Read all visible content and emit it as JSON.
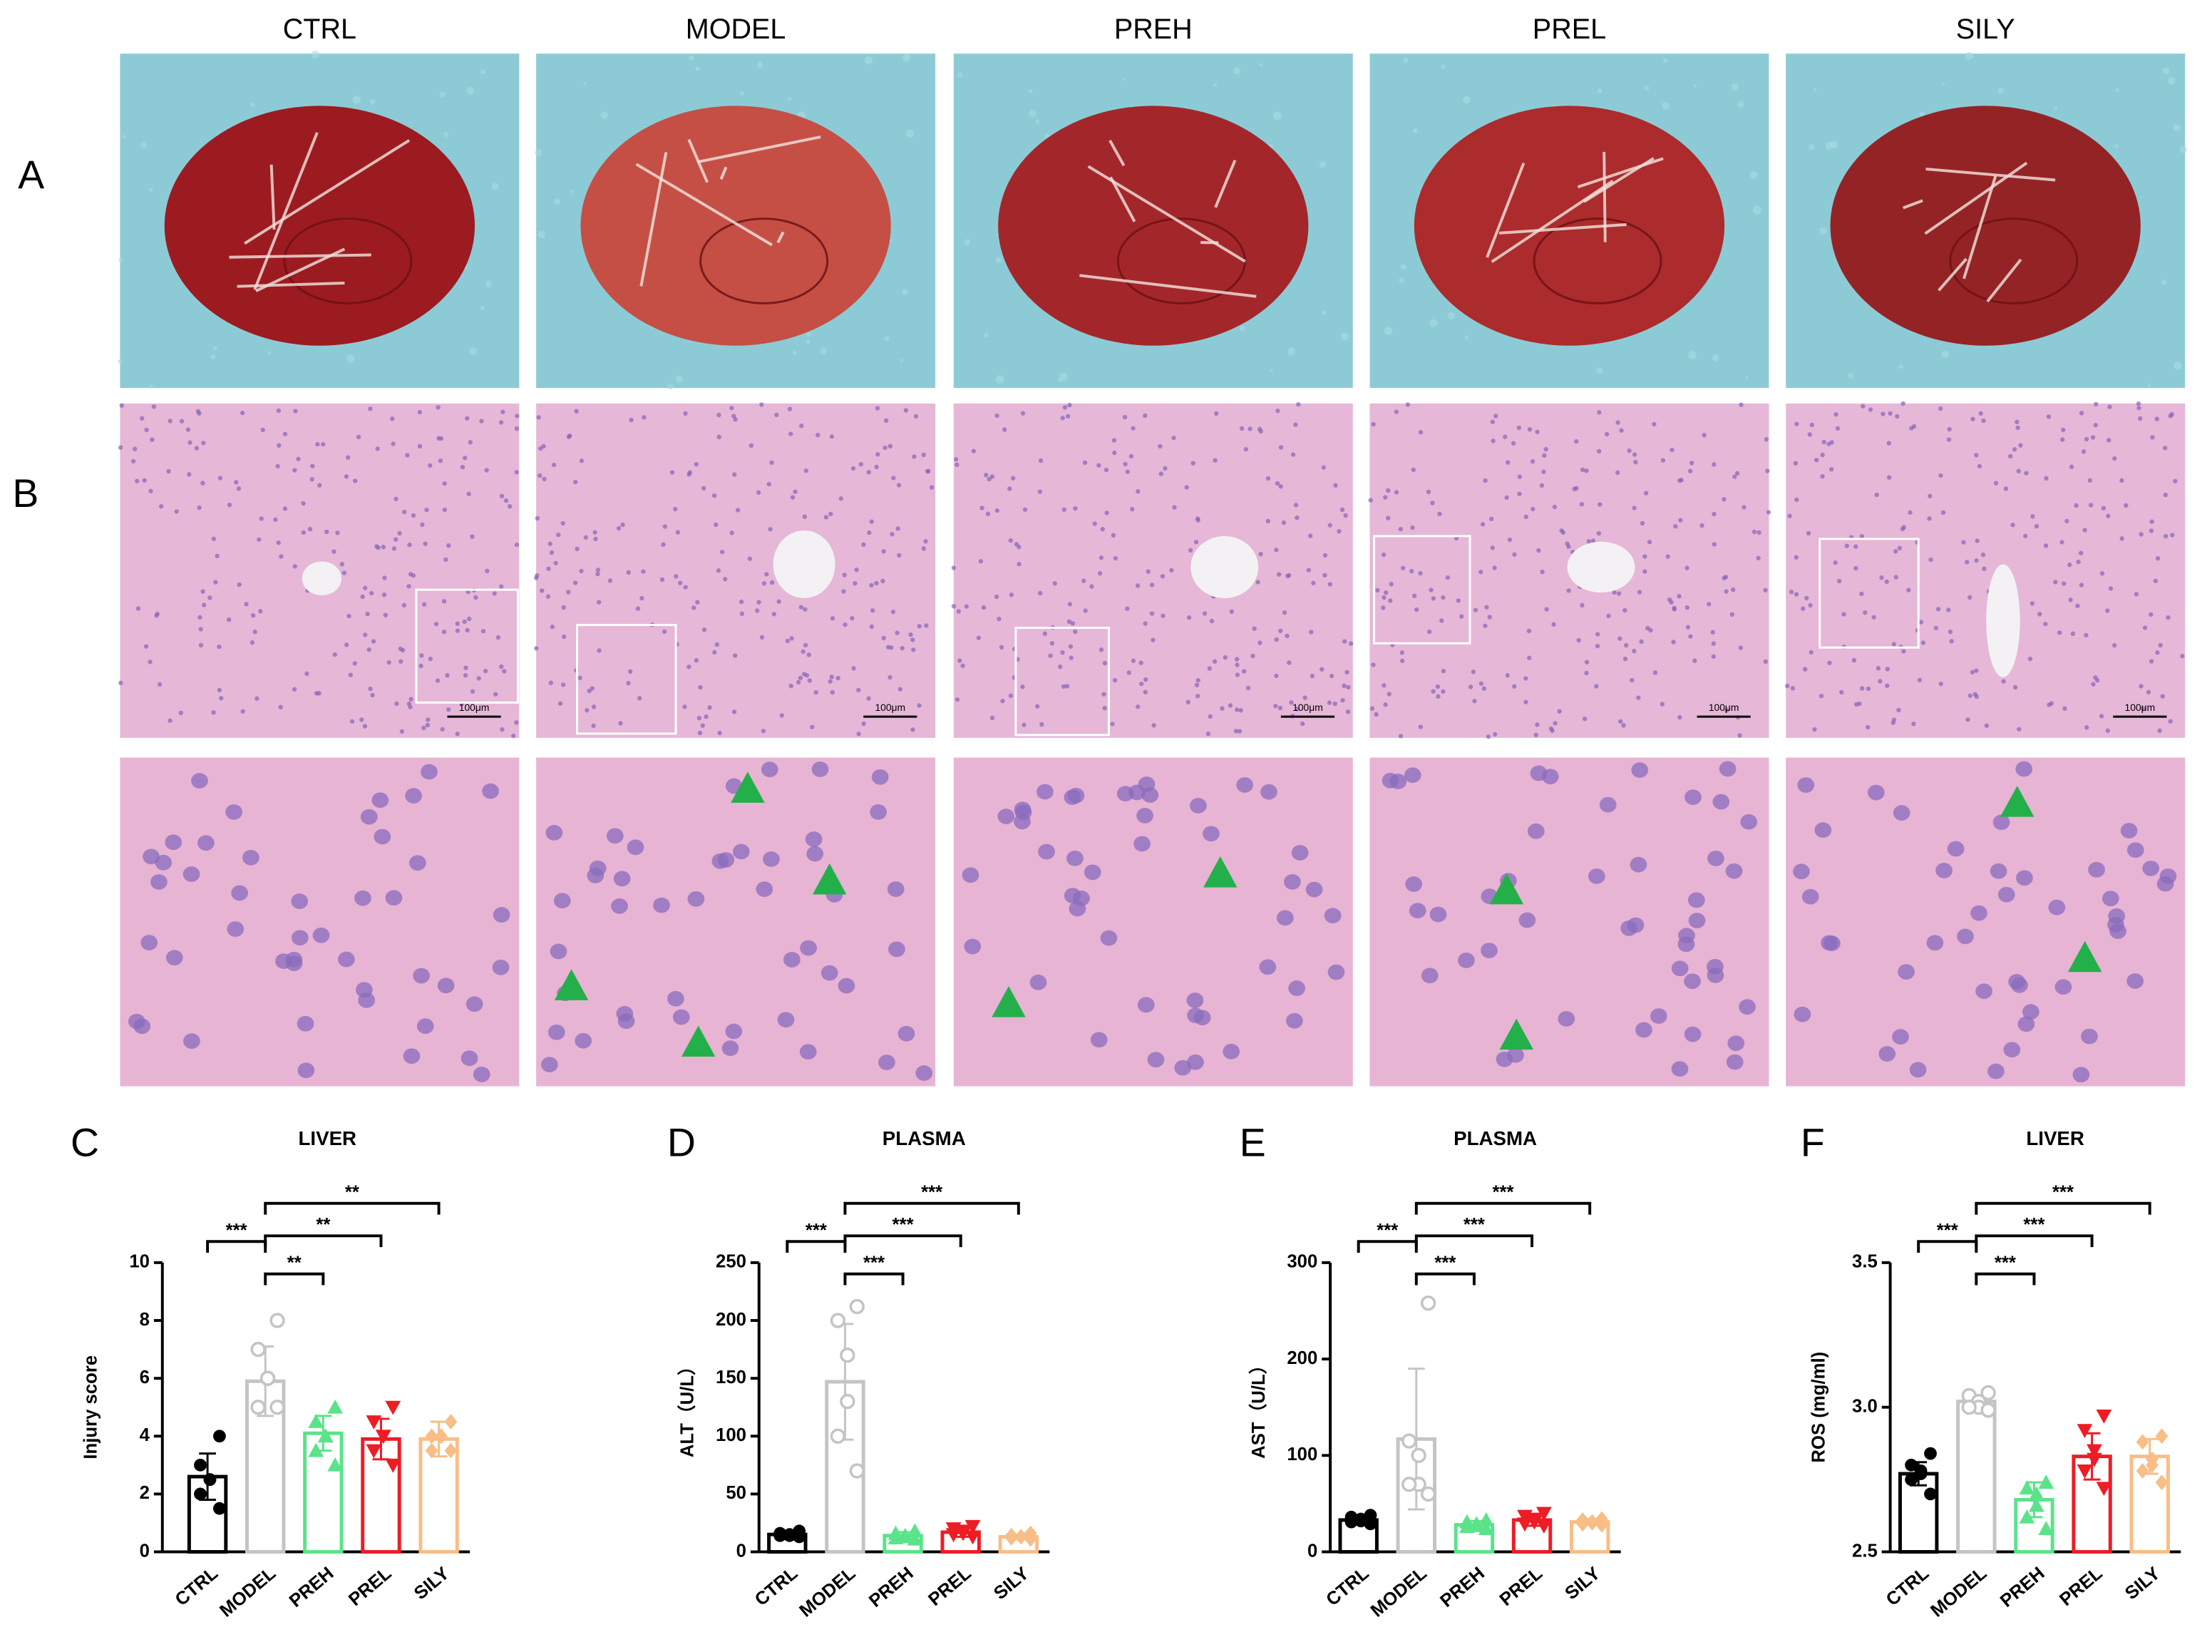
{
  "figure": {
    "groups": [
      "CTRL",
      "MODEL",
      "PREH",
      "PREL",
      "SILY"
    ],
    "row_labels": [
      "A",
      "B"
    ],
    "scale_bar_label": "100μm"
  },
  "chart_data": [
    {
      "type": "bar",
      "panel": "C",
      "title": "LIVER",
      "y_label": "Injury score",
      "categories": [
        "CTRL",
        "MODEL",
        "PREH",
        "PREL",
        "SILY"
      ],
      "colors": [
        "#000000",
        "#c4c4c4",
        "#5be38a",
        "#ee1c25",
        "#f8be86"
      ],
      "markers": [
        "circle",
        "open-circle",
        "triangle",
        "triangle-down",
        "diamond"
      ],
      "values": [
        2.6,
        5.9,
        4.1,
        3.9,
        3.9
      ],
      "errors": [
        0.8,
        1.2,
        0.6,
        0.7,
        0.6
      ],
      "points": [
        [
          4,
          3,
          2.5,
          2.5,
          2,
          1.5
        ],
        [
          8,
          7,
          6,
          6,
          5,
          5
        ],
        [
          5,
          4.5,
          4,
          4,
          3.5,
          3
        ],
        [
          5,
          4.5,
          4,
          4,
          3.5,
          3
        ],
        [
          4.5,
          4,
          4,
          4,
          3.5,
          3.5
        ]
      ],
      "ylim": [
        0,
        10
      ],
      "yticks": [
        0,
        2,
        4,
        6,
        8,
        10
      ],
      "significance": [
        {
          "categories": [
            "CTRL",
            "MODEL"
          ],
          "label": "***"
        },
        {
          "categories": [
            "MODEL",
            "PREH"
          ],
          "label": "**"
        },
        {
          "categories": [
            "MODEL",
            "PREL"
          ],
          "label": "**"
        },
        {
          "categories": [
            "MODEL",
            "SILY"
          ],
          "label": "**"
        }
      ]
    },
    {
      "type": "bar",
      "panel": "D",
      "title": "PLASMA",
      "y_label": "ALT（U/L）",
      "categories": [
        "CTRL",
        "MODEL",
        "PREH",
        "PREL",
        "SILY"
      ],
      "colors": [
        "#000000",
        "#c4c4c4",
        "#5be38a",
        "#ee1c25",
        "#f8be86"
      ],
      "markers": [
        "circle",
        "open-circle",
        "triangle",
        "triangle-down",
        "diamond"
      ],
      "values": [
        15,
        147,
        14,
        17,
        13
      ],
      "errors": [
        2,
        50,
        3,
        4,
        2
      ],
      "points": [
        [
          18,
          16,
          15,
          14,
          14,
          13
        ],
        [
          212,
          200,
          170,
          130,
          100,
          70
        ],
        [
          18,
          16,
          14,
          13,
          12,
          11
        ],
        [
          22,
          20,
          18,
          16,
          15,
          13
        ],
        [
          16,
          14,
          13,
          13,
          12,
          11
        ]
      ],
      "ylim": [
        0,
        250
      ],
      "yticks": [
        0,
        50,
        100,
        150,
        200,
        250
      ],
      "significance": [
        {
          "categories": [
            "CTRL",
            "MODEL"
          ],
          "label": "***"
        },
        {
          "categories": [
            "MODEL",
            "PREH"
          ],
          "label": "***"
        },
        {
          "categories": [
            "MODEL",
            "PREL"
          ],
          "label": "***"
        },
        {
          "categories": [
            "MODEL",
            "SILY"
          ],
          "label": "***"
        }
      ]
    },
    {
      "type": "bar",
      "panel": "E",
      "title": "PLASMA",
      "y_label": "AST（U/L）",
      "categories": [
        "CTRL",
        "MODEL",
        "PREH",
        "PREL",
        "SILY"
      ],
      "colors": [
        "#000000",
        "#c4c4c4",
        "#5be38a",
        "#ee1c25",
        "#f8be86"
      ],
      "markers": [
        "circle",
        "open-circle",
        "triangle",
        "triangle-down",
        "diamond"
      ],
      "values": [
        33,
        117,
        28,
        33,
        31
      ],
      "errors": [
        4,
        73,
        4,
        6,
        3
      ],
      "points": [
        [
          38,
          36,
          34,
          32,
          31,
          29
        ],
        [
          258,
          115,
          100,
          70,
          70,
          60
        ],
        [
          33,
          31,
          29,
          27,
          26,
          24
        ],
        [
          40,
          37,
          34,
          31,
          29,
          27
        ],
        [
          34,
          33,
          31,
          30,
          29,
          28
        ]
      ],
      "ylim": [
        0,
        300
      ],
      "yticks": [
        0,
        100,
        200,
        300
      ],
      "significance": [
        {
          "categories": [
            "CTRL",
            "MODEL"
          ],
          "label": "***"
        },
        {
          "categories": [
            "MODEL",
            "PREH"
          ],
          "label": "***"
        },
        {
          "categories": [
            "MODEL",
            "PREL"
          ],
          "label": "***"
        },
        {
          "categories": [
            "MODEL",
            "SILY"
          ],
          "label": "***"
        }
      ]
    },
    {
      "type": "bar",
      "panel": "F",
      "title": "LIVER",
      "y_label": "ROS (mg/ml)",
      "categories": [
        "CTRL",
        "MODEL",
        "PREH",
        "PREL",
        "SILY"
      ],
      "colors": [
        "#000000",
        "#c4c4c4",
        "#5be38a",
        "#ee1c25",
        "#f8be86"
      ],
      "markers": [
        "circle",
        "open-circle",
        "triangle",
        "triangle-down",
        "diamond"
      ],
      "values": [
        2.77,
        3.02,
        2.68,
        2.83,
        2.83
      ],
      "errors": [
        0.04,
        0.02,
        0.06,
        0.08,
        0.06
      ],
      "points": [
        [
          2.84,
          2.8,
          2.78,
          2.77,
          2.75,
          2.7
        ],
        [
          3.05,
          3.04,
          3.02,
          3.0,
          3.0,
          2.99
        ],
        [
          2.74,
          2.72,
          2.7,
          2.66,
          2.62,
          2.58
        ],
        [
          2.97,
          2.92,
          2.85,
          2.82,
          2.78,
          2.72
        ],
        [
          2.9,
          2.88,
          2.82,
          2.8,
          2.78,
          2.74
        ]
      ],
      "ylim": [
        2.5,
        3.5
      ],
      "yticks": [
        2.5,
        {
          "value": 3,
          "label": "3.0"
        },
        3.5
      ],
      "significance": [
        {
          "categories": [
            "CTRL",
            "MODEL"
          ],
          "label": "***"
        },
        {
          "categories": [
            "MODEL",
            "PREH"
          ],
          "label": "***"
        },
        {
          "categories": [
            "MODEL",
            "PREL"
          ],
          "label": "***"
        },
        {
          "categories": [
            "MODEL",
            "SILY"
          ],
          "label": "***"
        }
      ]
    }
  ]
}
